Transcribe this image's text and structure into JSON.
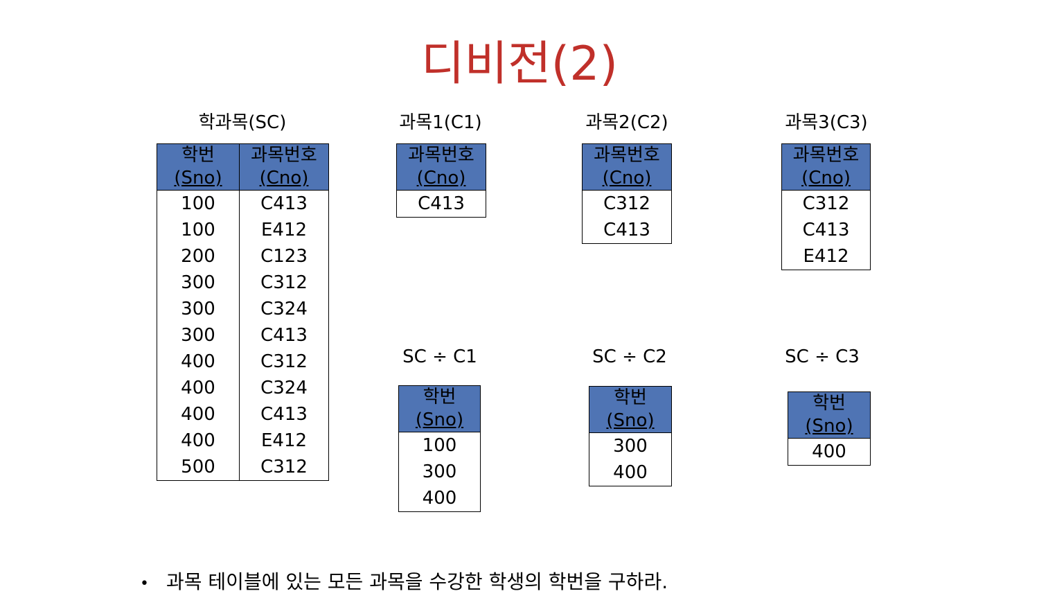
{
  "title": "디비전(2)",
  "sc": {
    "caption": "학과목(SC)",
    "headers": [
      {
        "line1": "학번",
        "line2": "(Sno)"
      },
      {
        "line1": "과목번호",
        "line2": "(Cno)"
      }
    ],
    "rows": [
      [
        "100",
        "C413"
      ],
      [
        "100",
        "E412"
      ],
      [
        "200",
        "C123"
      ],
      [
        "300",
        "C312"
      ],
      [
        "300",
        "C324"
      ],
      [
        "300",
        "C413"
      ],
      [
        "400",
        "C312"
      ],
      [
        "400",
        "C324"
      ],
      [
        "400",
        "C413"
      ],
      [
        "400",
        "E412"
      ],
      [
        "500",
        "C312"
      ]
    ]
  },
  "c1": {
    "caption": "과목1(C1)",
    "header": {
      "line1": "과목번호",
      "line2": "(Cno)"
    },
    "rows": [
      "C413"
    ]
  },
  "c2": {
    "caption": "과목2(C2)",
    "header": {
      "line1": "과목번호",
      "line2": "(Cno)"
    },
    "rows": [
      "C312",
      "C413"
    ]
  },
  "c3": {
    "caption": "과목3(C3)",
    "header": {
      "line1": "과목번호",
      "line2": "(Cno)"
    },
    "rows": [
      "C312",
      "C413",
      "E412"
    ]
  },
  "r1": {
    "caption": "SC ÷ C1",
    "header": {
      "line1": "학번",
      "line2": "(Sno)"
    },
    "rows": [
      "100",
      "300",
      "400"
    ]
  },
  "r2": {
    "caption": "SC ÷ C2",
    "header": {
      "line1": "학번",
      "line2": "(Sno)"
    },
    "rows": [
      "300",
      "400"
    ]
  },
  "r3": {
    "caption": "SC ÷ C3",
    "header": {
      "line1": "학번",
      "line2": "(Sno)"
    },
    "rows": [
      "400"
    ]
  },
  "bullet": {
    "marker": "•",
    "text": "과목 테이블에 있는 모든 과목을 수강한 학생의 학번을 구하라."
  },
  "colors": {
    "title": "#c0302a",
    "header_fill": "#4f74b4"
  }
}
